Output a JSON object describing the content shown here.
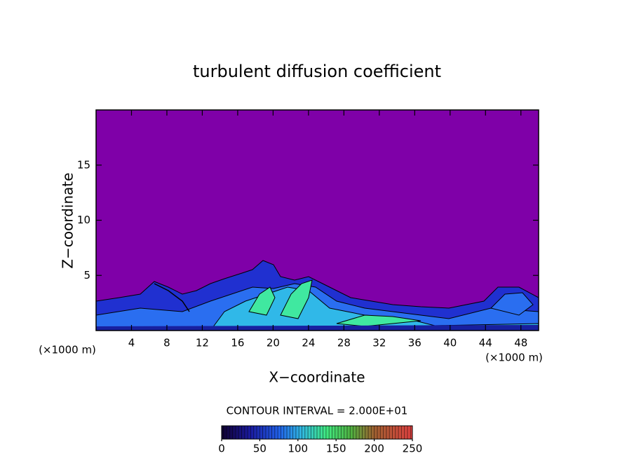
{
  "chart_data": {
    "type": "contour",
    "title": "turbulent diffusion coefficient",
    "xlabel": "X−coordinate",
    "ylabel": "Z−coordinate",
    "xunit": "(×1000 m)",
    "yunit": "(×1000 m)",
    "xlim": [
      0,
      50
    ],
    "xticks": [
      4,
      8,
      12,
      16,
      20,
      24,
      28,
      32,
      36,
      40,
      44,
      48
    ],
    "ylim": [
      0,
      20
    ],
    "yticks": [
      5,
      10,
      15
    ],
    "background_color": "#7f00a8",
    "colorbar": {
      "title": "CONTOUR INTERVAL = 2.000E+01",
      "lim": [
        0,
        250
      ],
      "ticks": [
        0,
        50,
        100,
        150,
        200,
        250
      ]
    }
  }
}
